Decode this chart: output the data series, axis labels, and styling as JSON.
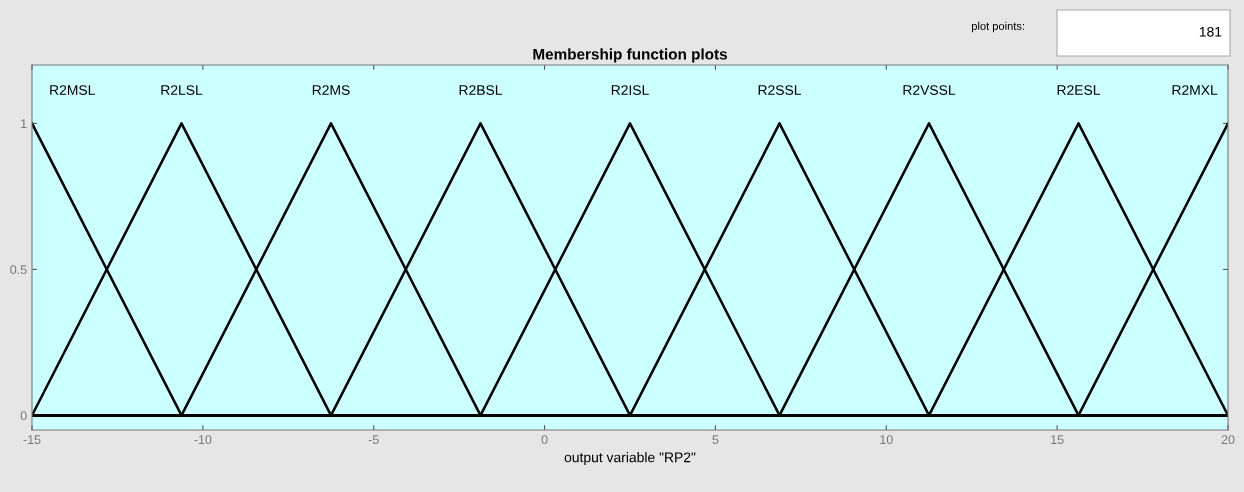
{
  "chart_data": {
    "type": "line",
    "title": "Membership function plots",
    "xlabel": "output variable \"RP2\"",
    "annotations": [
      "plot points:",
      "181"
    ],
    "series": [
      {
        "name": "R2MSL",
        "color": "#000000",
        "x": [
          -15,
          -10.625,
          20
        ],
        "values": [
          1,
          0,
          0
        ]
      },
      {
        "name": "R2LSL",
        "color": "#000000",
        "x": [
          -15,
          -10.625,
          -6.25,
          20
        ],
        "values": [
          0,
          1,
          0,
          0
        ]
      },
      {
        "name": "R2MS",
        "color": "#000000",
        "x": [
          -15,
          -10.625,
          -6.25,
          -1.875,
          20
        ],
        "values": [
          0,
          0,
          1,
          0,
          0
        ]
      },
      {
        "name": "R2BSL",
        "color": "#000000",
        "x": [
          -15,
          -6.25,
          -1.875,
          2.5,
          20
        ],
        "values": [
          0,
          0,
          1,
          0,
          0
        ]
      },
      {
        "name": "R2ISL",
        "color": "#000000",
        "x": [
          -15,
          -1.875,
          2.5,
          6.875,
          20
        ],
        "values": [
          0,
          0,
          1,
          0,
          0
        ]
      },
      {
        "name": "R2SSL",
        "color": "#000000",
        "x": [
          -15,
          2.5,
          6.875,
          11.25,
          20
        ],
        "values": [
          0,
          0,
          1,
          0,
          0
        ]
      },
      {
        "name": "R2VSSL",
        "color": "#000000",
        "x": [
          -15,
          6.875,
          11.25,
          15.625,
          20
        ],
        "values": [
          0,
          0,
          1,
          0,
          0
        ]
      },
      {
        "name": "R2ESL",
        "color": "#000000",
        "x": [
          -15,
          11.25,
          15.625,
          20
        ],
        "values": [
          0,
          0,
          1,
          0
        ]
      },
      {
        "name": "R2MXL",
        "color": "#000000",
        "x": [
          -15,
          15.625,
          20
        ],
        "values": [
          0,
          0,
          1
        ]
      }
    ],
    "xlim": [
      -15,
      20
    ],
    "xticks": [
      -15,
      -10,
      -5,
      0,
      5,
      10,
      15,
      20
    ],
    "ylim": [
      -0.05,
      1.2
    ],
    "yticks": [
      0,
      0.5,
      1
    ],
    "grid": false,
    "legend": false,
    "marker": "none",
    "line_style": "solid"
  }
}
